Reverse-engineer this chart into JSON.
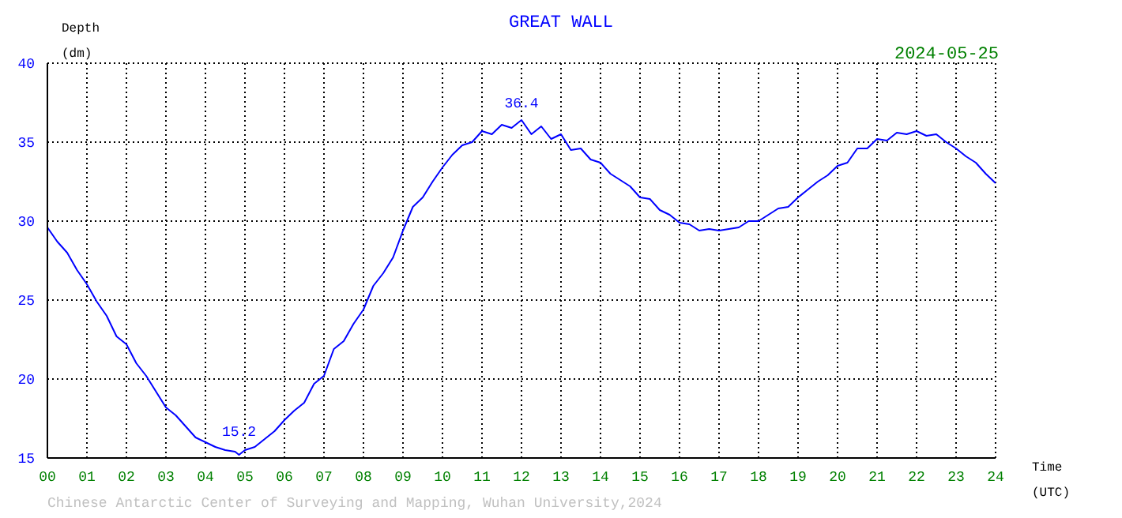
{
  "chart_data": {
    "type": "line",
    "title": "GREAT WALL",
    "subtitle": "2024-05-25",
    "xlabel": "Time (UTC)",
    "ylabel": "Depth (dm)",
    "x": [
      0,
      0.25,
      0.5,
      0.75,
      1,
      1.25,
      1.5,
      1.75,
      2,
      2.25,
      2.5,
      2.75,
      3,
      3.25,
      3.5,
      3.75,
      4,
      4.25,
      4.5,
      4.75,
      4.85,
      5,
      5.25,
      5.5,
      5.75,
      6,
      6.25,
      6.5,
      6.75,
      7,
      7.25,
      7.5,
      7.75,
      8,
      8.25,
      8.5,
      8.75,
      9,
      9.25,
      9.5,
      9.75,
      10,
      10.25,
      10.5,
      10.75,
      11,
      11.25,
      11.5,
      11.75,
      12,
      12.25,
      12.5,
      12.75,
      13,
      13.25,
      13.5,
      13.75,
      14,
      14.25,
      14.5,
      14.75,
      15,
      15.25,
      15.5,
      15.75,
      16,
      16.25,
      16.5,
      16.75,
      17,
      17.25,
      17.5,
      17.75,
      18,
      18.25,
      18.5,
      18.75,
      19,
      19.25,
      19.5,
      19.75,
      20,
      20.25,
      20.5,
      20.75,
      21,
      21.25,
      21.5,
      21.75,
      22,
      22.25,
      22.5,
      22.75,
      23,
      23.25,
      23.5,
      23.75,
      24
    ],
    "series": [
      {
        "color": "#0000ff",
        "values": [
          29.6,
          28.7,
          28.0,
          26.9,
          26.0,
          24.9,
          24.0,
          22.7,
          22.2,
          21.0,
          20.2,
          19.2,
          18.2,
          17.7,
          17.0,
          16.3,
          16.0,
          15.7,
          15.5,
          15.4,
          15.2,
          15.5,
          15.7,
          16.2,
          16.7,
          17.4,
          18.0,
          18.5,
          19.7,
          20.2,
          21.9,
          22.4,
          23.5,
          24.4,
          25.9,
          26.7,
          27.7,
          29.4,
          30.9,
          31.5,
          32.5,
          33.4,
          34.2,
          34.8,
          35.0,
          35.7,
          35.5,
          36.1,
          35.9,
          36.4,
          35.5,
          36.0,
          35.2,
          35.5,
          34.5,
          34.6,
          33.9,
          33.7,
          33.0,
          32.6,
          32.2,
          31.5,
          31.4,
          30.7,
          30.4,
          29.9,
          29.8,
          29.4,
          29.5,
          29.4,
          29.5,
          29.6,
          30.0,
          30.0,
          30.4,
          30.8,
          30.9,
          31.5,
          32.0,
          32.5,
          32.9,
          33.5,
          33.7,
          34.6,
          34.6,
          35.2,
          35.1,
          35.6,
          35.5,
          35.7,
          35.4,
          35.5,
          35.0,
          34.6,
          34.1,
          33.7,
          33.0,
          32.4
        ]
      }
    ],
    "xlim": [
      0,
      24
    ],
    "xticks": [
      {
        "value": 0,
        "label": "00"
      },
      {
        "value": 1,
        "label": "01"
      },
      {
        "value": 2,
        "label": "02"
      },
      {
        "value": 3,
        "label": "03"
      },
      {
        "value": 4,
        "label": "04"
      },
      {
        "value": 5,
        "label": "05"
      },
      {
        "value": 6,
        "label": "06"
      },
      {
        "value": 7,
        "label": "07"
      },
      {
        "value": 8,
        "label": "08"
      },
      {
        "value": 9,
        "label": "09"
      },
      10,
      11,
      12,
      13,
      14,
      15,
      16,
      17,
      18,
      19,
      20,
      21,
      22,
      23,
      24
    ],
    "ylim": [
      15,
      40
    ],
    "yticks": [
      15,
      20,
      25,
      30,
      35,
      40
    ],
    "grid": true,
    "marker": "none",
    "line_style": "solid",
    "annotations": [
      {
        "text": "36.4",
        "x": 12,
        "y": 36.4
      },
      {
        "text": "15.2",
        "x": 4.85,
        "y": 15.2
      },
      "Chinese Antarctic Center of Surveying and Mapping, Wuhan University,2024"
    ]
  }
}
